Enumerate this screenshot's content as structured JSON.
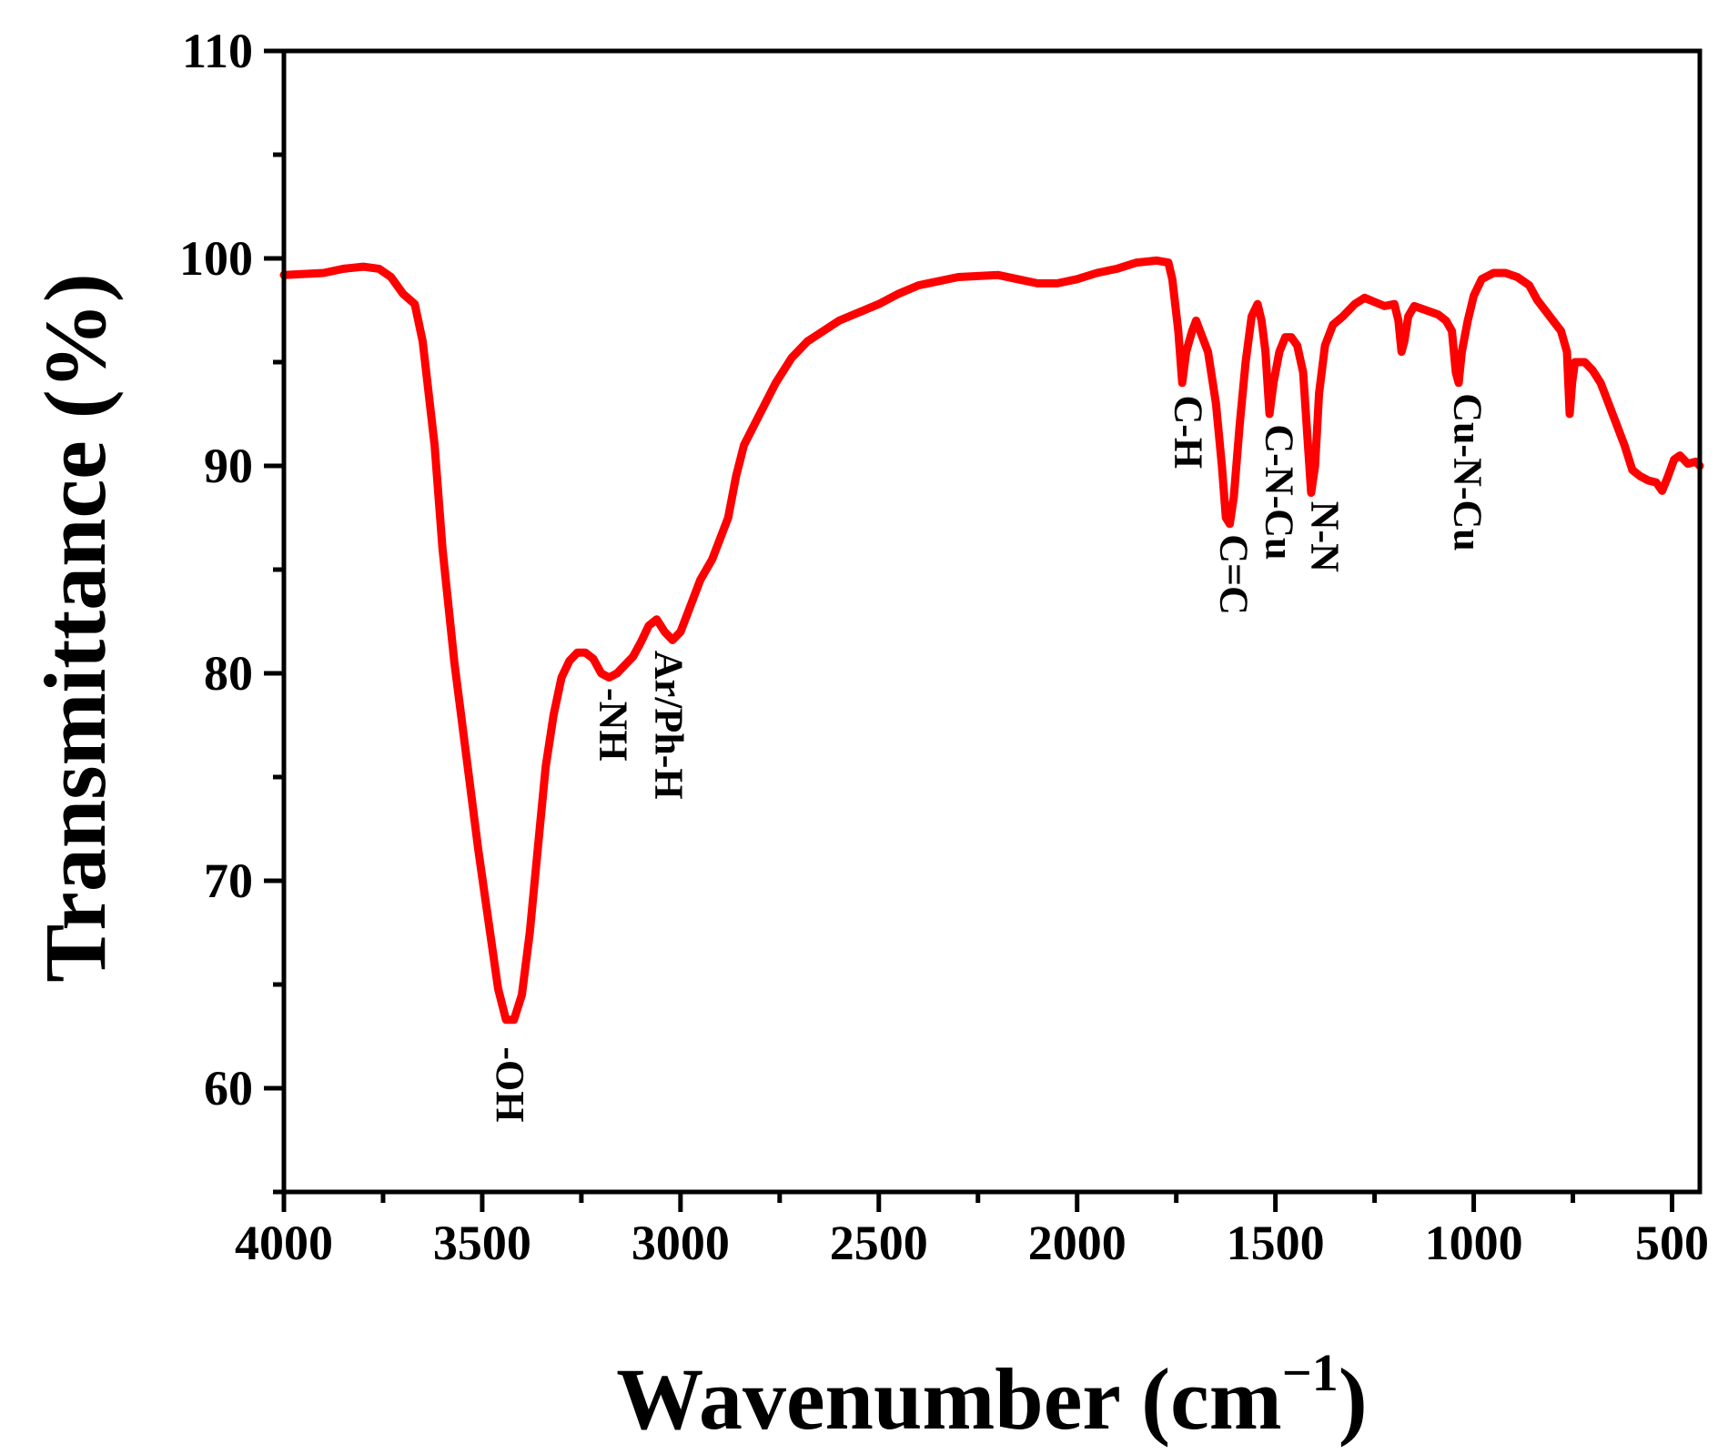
{
  "chart_data": {
    "type": "line",
    "title": "",
    "xlabel": "Wavenumber (cm",
    "xlabel_sup": "−1",
    "xlabel_close": ")",
    "ylabel": "Transmittance (%)",
    "xlim": [
      4000,
      430
    ],
    "ylim": [
      55,
      110
    ],
    "x_ticks": [
      4000,
      3500,
      3000,
      2500,
      2000,
      1500,
      1000,
      500
    ],
    "y_ticks": [
      60,
      70,
      80,
      90,
      100,
      110
    ],
    "line_color": "#ff0000",
    "series": [
      {
        "name": "FTIR",
        "points": [
          [
            4000,
            99.2
          ],
          [
            3900,
            99.3
          ],
          [
            3850,
            99.5
          ],
          [
            3800,
            99.6
          ],
          [
            3760,
            99.5
          ],
          [
            3730,
            99.1
          ],
          [
            3700,
            98.3
          ],
          [
            3670,
            97.8
          ],
          [
            3650,
            96.0
          ],
          [
            3620,
            91.0
          ],
          [
            3600,
            86.0
          ],
          [
            3570,
            80.5
          ],
          [
            3540,
            76.0
          ],
          [
            3510,
            71.5
          ],
          [
            3480,
            67.5
          ],
          [
            3460,
            64.8
          ],
          [
            3440,
            63.3
          ],
          [
            3420,
            63.3
          ],
          [
            3400,
            64.5
          ],
          [
            3380,
            67.5
          ],
          [
            3360,
            71.5
          ],
          [
            3340,
            75.5
          ],
          [
            3320,
            78.0
          ],
          [
            3300,
            79.8
          ],
          [
            3280,
            80.6
          ],
          [
            3260,
            81.0
          ],
          [
            3240,
            81.0
          ],
          [
            3220,
            80.7
          ],
          [
            3200,
            80.0
          ],
          [
            3180,
            79.8
          ],
          [
            3160,
            80.0
          ],
          [
            3140,
            80.4
          ],
          [
            3120,
            80.8
          ],
          [
            3100,
            81.5
          ],
          [
            3080,
            82.3
          ],
          [
            3060,
            82.6
          ],
          [
            3040,
            82.0
          ],
          [
            3020,
            81.6
          ],
          [
            3000,
            82.0
          ],
          [
            2980,
            83.0
          ],
          [
            2950,
            84.5
          ],
          [
            2920,
            85.5
          ],
          [
            2880,
            87.5
          ],
          [
            2860,
            89.5
          ],
          [
            2840,
            91.0
          ],
          [
            2800,
            92.5
          ],
          [
            2760,
            94.0
          ],
          [
            2720,
            95.2
          ],
          [
            2680,
            96.0
          ],
          [
            2600,
            97.0
          ],
          [
            2500,
            97.8
          ],
          [
            2450,
            98.3
          ],
          [
            2400,
            98.7
          ],
          [
            2300,
            99.1
          ],
          [
            2200,
            99.2
          ],
          [
            2150,
            99.0
          ],
          [
            2100,
            98.8
          ],
          [
            2050,
            98.8
          ],
          [
            2000,
            99.0
          ],
          [
            1950,
            99.3
          ],
          [
            1900,
            99.5
          ],
          [
            1850,
            99.8
          ],
          [
            1800,
            99.9
          ],
          [
            1770,
            99.8
          ],
          [
            1760,
            99.0
          ],
          [
            1745,
            96.5
          ],
          [
            1735,
            94.0
          ],
          [
            1725,
            95.5
          ],
          [
            1710,
            96.5
          ],
          [
            1700,
            97.0
          ],
          [
            1690,
            96.5
          ],
          [
            1670,
            95.5
          ],
          [
            1650,
            93.0
          ],
          [
            1635,
            90.0
          ],
          [
            1625,
            87.5
          ],
          [
            1615,
            87.2
          ],
          [
            1605,
            88.5
          ],
          [
            1590,
            92.0
          ],
          [
            1575,
            95.0
          ],
          [
            1560,
            97.2
          ],
          [
            1545,
            97.8
          ],
          [
            1535,
            97.0
          ],
          [
            1525,
            95.5
          ],
          [
            1515,
            92.5
          ],
          [
            1505,
            94.0
          ],
          [
            1490,
            95.5
          ],
          [
            1475,
            96.2
          ],
          [
            1460,
            96.2
          ],
          [
            1445,
            95.8
          ],
          [
            1430,
            94.5
          ],
          [
            1418,
            91.0
          ],
          [
            1410,
            88.7
          ],
          [
            1400,
            90.0
          ],
          [
            1390,
            93.5
          ],
          [
            1375,
            95.8
          ],
          [
            1355,
            96.8
          ],
          [
            1330,
            97.2
          ],
          [
            1300,
            97.8
          ],
          [
            1275,
            98.1
          ],
          [
            1250,
            97.9
          ],
          [
            1225,
            97.7
          ],
          [
            1200,
            97.8
          ],
          [
            1190,
            97.0
          ],
          [
            1182,
            95.5
          ],
          [
            1175,
            96.0
          ],
          [
            1165,
            97.2
          ],
          [
            1150,
            97.7
          ],
          [
            1120,
            97.5
          ],
          [
            1090,
            97.3
          ],
          [
            1070,
            97.0
          ],
          [
            1055,
            96.5
          ],
          [
            1045,
            94.5
          ],
          [
            1038,
            94.0
          ],
          [
            1030,
            95.5
          ],
          [
            1015,
            97.0
          ],
          [
            1000,
            98.2
          ],
          [
            980,
            99.0
          ],
          [
            950,
            99.3
          ],
          [
            920,
            99.3
          ],
          [
            890,
            99.1
          ],
          [
            860,
            98.7
          ],
          [
            840,
            98.0
          ],
          [
            820,
            97.5
          ],
          [
            800,
            97.0
          ],
          [
            780,
            96.5
          ],
          [
            765,
            95.5
          ],
          [
            758,
            92.5
          ],
          [
            752,
            94.0
          ],
          [
            745,
            95.0
          ],
          [
            720,
            95.0
          ],
          [
            700,
            94.6
          ],
          [
            680,
            94.0
          ],
          [
            660,
            93.0
          ],
          [
            640,
            92.0
          ],
          [
            620,
            91.0
          ],
          [
            600,
            89.8
          ],
          [
            580,
            89.5
          ],
          [
            560,
            89.3
          ],
          [
            540,
            89.2
          ],
          [
            525,
            88.8
          ],
          [
            510,
            89.5
          ],
          [
            495,
            90.3
          ],
          [
            480,
            90.5
          ],
          [
            460,
            90.1
          ],
          [
            440,
            90.2
          ],
          [
            430,
            90.0
          ]
        ]
      }
    ],
    "annotations": [
      {
        "text": "-OH",
        "x": 3430,
        "y": 62.0,
        "rotate": 90
      },
      {
        "text": "-NH",
        "x": 3170,
        "y": 79.3,
        "rotate": 90
      },
      {
        "text": "Ar/Ph-H",
        "x": 3030,
        "y": 81.1,
        "rotate": 90
      },
      {
        "text": "C-H",
        "x": 1720,
        "y": 93.4,
        "rotate": 90
      },
      {
        "text": "C=C",
        "x": 1605,
        "y": 86.7,
        "rotate": 90
      },
      {
        "text": "C-N-Cu",
        "x": 1490,
        "y": 92.0,
        "rotate": 90
      },
      {
        "text": "N-N",
        "x": 1375,
        "y": 88.3,
        "rotate": 90
      },
      {
        "text": "Cu-N-Cu",
        "x": 1015,
        "y": 93.5,
        "rotate": 90
      }
    ]
  }
}
